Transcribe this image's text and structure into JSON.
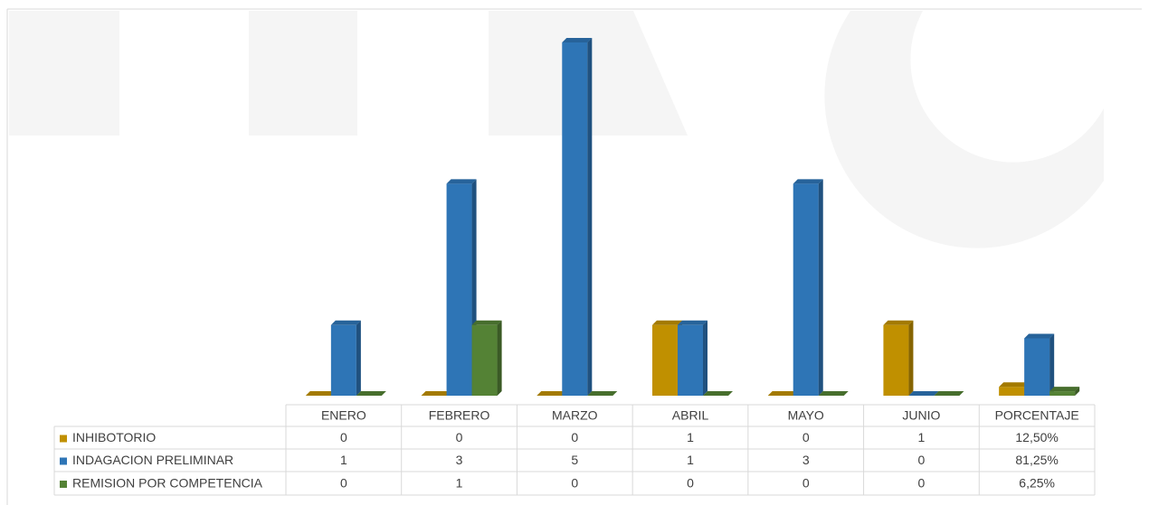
{
  "chart_data": {
    "type": "bar",
    "categories": [
      "ENERO",
      "FEBRERO",
      "MARZO",
      "ABRIL",
      "MAYO",
      "JUNIO",
      "PORCENTAJE"
    ],
    "series": [
      {
        "name": "INHIBOTORIO",
        "color": "#c09000",
        "values": [
          0,
          0,
          0,
          1,
          0,
          1,
          0.125
        ],
        "value_labels": [
          "0",
          "0",
          "0",
          "1",
          "0",
          "1",
          "12,50%"
        ]
      },
      {
        "name": "INDAGACION PRELIMINAR",
        "color": "#2e75b6",
        "values": [
          1,
          3,
          5,
          1,
          3,
          0,
          0.8125
        ],
        "value_labels": [
          "1",
          "3",
          "5",
          "1",
          "3",
          "0",
          "81,25%"
        ]
      },
      {
        "name": "REMISION POR COMPETENCIA",
        "color": "#548235",
        "values": [
          0,
          1,
          0,
          0,
          0,
          0,
          0.0625
        ],
        "value_labels": [
          "0",
          "1",
          "0",
          "0",
          "0",
          "0",
          "6,25%"
        ]
      }
    ],
    "ylim": [
      0,
      5
    ]
  }
}
